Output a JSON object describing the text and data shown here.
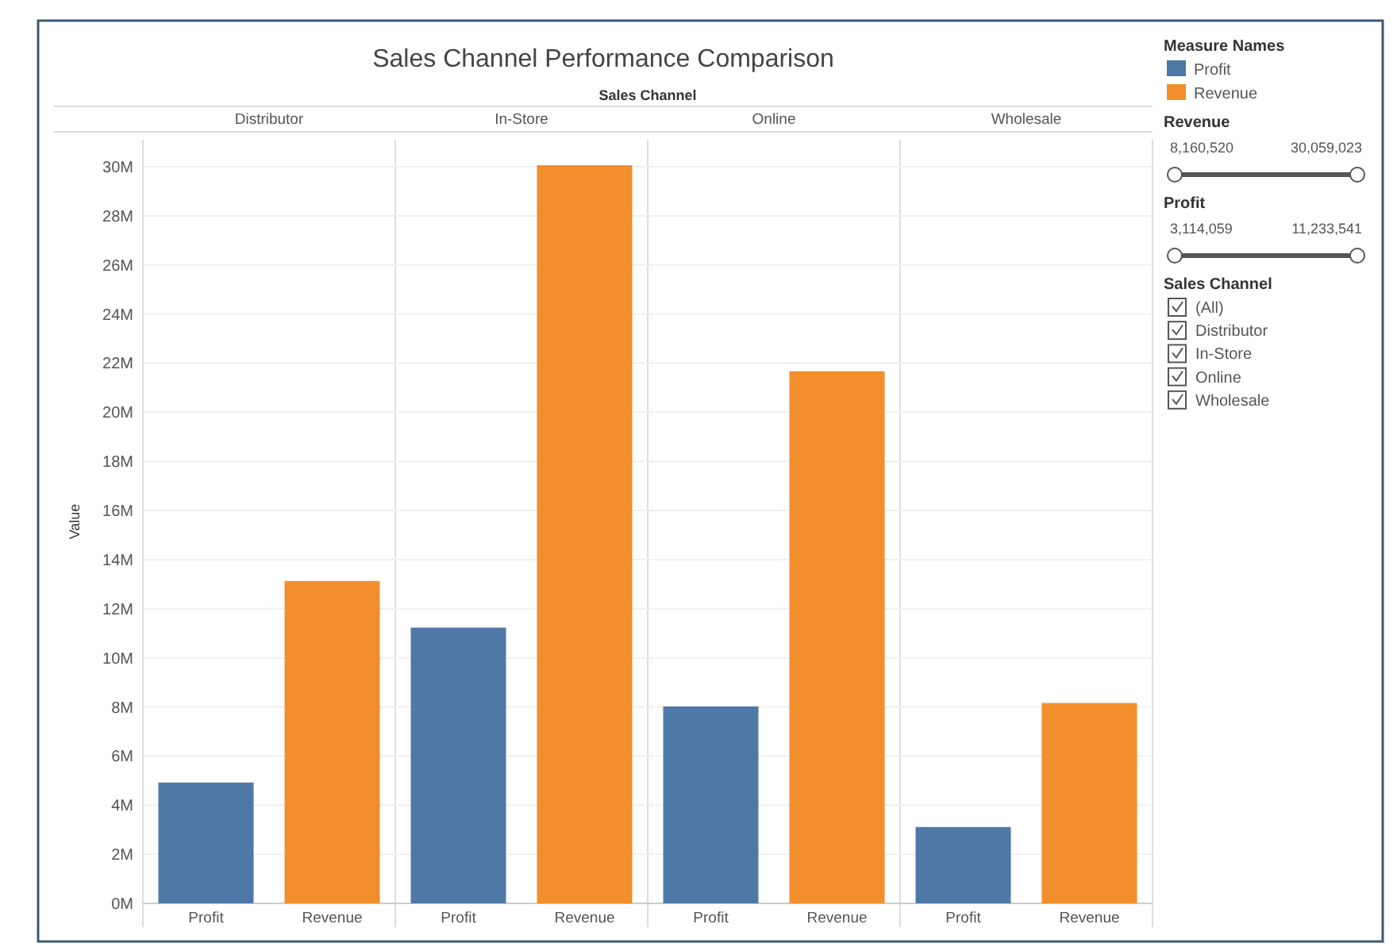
{
  "chart_data": {
    "type": "bar",
    "title": "Sales Channel Performance Comparison",
    "xlabel": "Sales Channel",
    "ylabel": "Value",
    "legend_title": "Measure Names",
    "legend": "right",
    "grid": "y",
    "categories": [
      "Distributor",
      "In-Store",
      "Online",
      "Wholesale"
    ],
    "series": [
      {
        "name": "Profit",
        "color": "#4e79a7",
        "values": [
          4920000,
          11230000,
          8020000,
          3110000
        ]
      },
      {
        "name": "Revenue",
        "color": "#f28e2b",
        "values": [
          13130000,
          30060000,
          21670000,
          8160000
        ]
      }
    ],
    "ylim": [
      0,
      31100000
    ],
    "yticks": [
      {
        "value": 0,
        "label": "0M"
      },
      {
        "value": 2000000,
        "label": "2M"
      },
      {
        "value": 4000000,
        "label": "4M"
      },
      {
        "value": 6000000,
        "label": "6M"
      },
      {
        "value": 8000000,
        "label": "8M"
      },
      {
        "value": 10000000,
        "label": "10M"
      },
      {
        "value": 12000000,
        "label": "12M"
      },
      {
        "value": 14000000,
        "label": "14M"
      },
      {
        "value": 16000000,
        "label": "16M"
      },
      {
        "value": 18000000,
        "label": "18M"
      },
      {
        "value": 20000000,
        "label": "20M"
      },
      {
        "value": 22000000,
        "label": "22M"
      },
      {
        "value": 24000000,
        "label": "24M"
      },
      {
        "value": 26000000,
        "label": "26M"
      },
      {
        "value": 28000000,
        "label": "28M"
      },
      {
        "value": 30000000,
        "label": "30M"
      }
    ],
    "annotations": [
      "Revenue",
      "8,160,520",
      "30,059,023",
      "Profit",
      "3,114,059",
      "11,233,541",
      "Sales Channel",
      "(All)",
      "Distributor",
      "In-Store",
      "Online",
      "Wholesale"
    ]
  }
}
